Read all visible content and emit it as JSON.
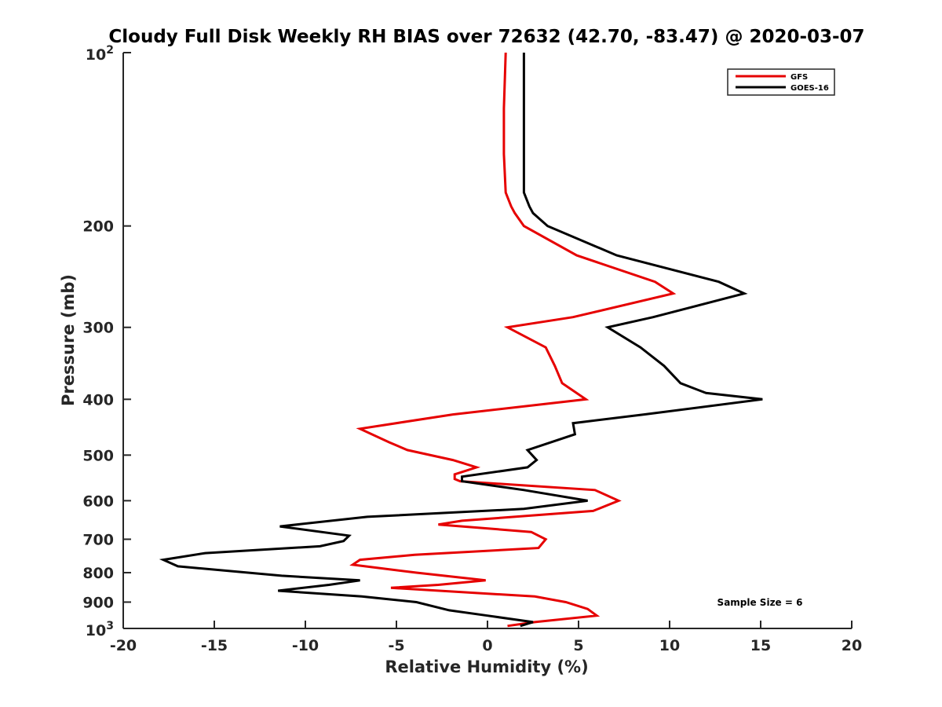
{
  "chart_data": {
    "type": "line",
    "title": "Cloudy Full Disk Weekly RH BIAS over 72632 (42.70, -83.47) @ 2020-03-07",
    "xlabel": "Relative Humidity (%)",
    "ylabel": "Pressure (mb)",
    "xlim": [
      -20,
      20
    ],
    "ylim": [
      100,
      1000
    ],
    "y_scale": "log",
    "y_reversed": true,
    "grid": false,
    "legend_position": "top-right",
    "x_ticks": [
      -20,
      -15,
      -10,
      -5,
      0,
      5,
      10,
      15,
      20
    ],
    "x_tick_labels": [
      "-20",
      "-15",
      "-10",
      "-5",
      "0",
      "5",
      "10",
      "15",
      "20"
    ],
    "y_ticks": [
      200,
      300,
      400,
      500,
      600,
      700,
      800,
      900
    ],
    "y_tick_labels": [
      "200",
      "300",
      "400",
      "500",
      "600",
      "700",
      "800",
      "900"
    ],
    "y_end_labels": {
      "top_base": "10",
      "top_exp": "2",
      "bottom_base": "10",
      "bottom_exp": "3"
    },
    "annotation": "Sample Size = 6",
    "series": [
      {
        "name": "GFS",
        "color": "#e60000",
        "points": [
          [
            1.0,
            100
          ],
          [
            0.9,
            125
          ],
          [
            0.9,
            150
          ],
          [
            1.0,
            175
          ],
          [
            1.3,
            185
          ],
          [
            1.5,
            190
          ],
          [
            2.0,
            200
          ],
          [
            4.9,
            225
          ],
          [
            9.2,
            250
          ],
          [
            10.2,
            262
          ],
          [
            4.7,
            288
          ],
          [
            1.1,
            300
          ],
          [
            3.2,
            325
          ],
          [
            3.7,
            350
          ],
          [
            4.1,
            375
          ],
          [
            5.4,
            400
          ],
          [
            -1.9,
            425
          ],
          [
            -7.0,
            450
          ],
          [
            -5.4,
            475
          ],
          [
            -4.4,
            490
          ],
          [
            -1.9,
            510
          ],
          [
            -0.6,
            525
          ],
          [
            -1.8,
            540
          ],
          [
            -1.8,
            550
          ],
          [
            -1.5,
            555
          ],
          [
            5.9,
            575
          ],
          [
            7.2,
            600
          ],
          [
            5.8,
            625
          ],
          [
            -1.4,
            650
          ],
          [
            -2.7,
            660
          ],
          [
            2.4,
            680
          ],
          [
            3.2,
            700
          ],
          [
            2.8,
            725
          ],
          [
            -4.0,
            745
          ],
          [
            -7.0,
            760
          ],
          [
            -7.4,
            775
          ],
          [
            -3.9,
            800
          ],
          [
            -0.1,
            825
          ],
          [
            -2.7,
            840
          ],
          [
            -5.3,
            850
          ],
          [
            2.6,
            880
          ],
          [
            4.3,
            900
          ],
          [
            5.5,
            925
          ],
          [
            6.0,
            950
          ],
          [
            2.6,
            975
          ],
          [
            1.1,
            990
          ]
        ]
      },
      {
        "name": "GOES-16",
        "color": "#000000",
        "points": [
          [
            2.0,
            100
          ],
          [
            2.0,
            125
          ],
          [
            2.0,
            150
          ],
          [
            2.0,
            175
          ],
          [
            2.3,
            185
          ],
          [
            2.5,
            190
          ],
          [
            3.3,
            200
          ],
          [
            7.1,
            225
          ],
          [
            12.7,
            250
          ],
          [
            14.1,
            262
          ],
          [
            9.1,
            288
          ],
          [
            6.6,
            300
          ],
          [
            8.4,
            325
          ],
          [
            9.7,
            350
          ],
          [
            10.6,
            375
          ],
          [
            12.0,
            390
          ],
          [
            15.1,
            400
          ],
          [
            8.6,
            425
          ],
          [
            4.7,
            440
          ],
          [
            4.8,
            460
          ],
          [
            2.2,
            490
          ],
          [
            2.7,
            510
          ],
          [
            2.2,
            525
          ],
          [
            -1.4,
            545
          ],
          [
            -1.4,
            555
          ],
          [
            2.0,
            575
          ],
          [
            5.5,
            600
          ],
          [
            2.0,
            620
          ],
          [
            -6.6,
            640
          ],
          [
            -11.4,
            665
          ],
          [
            -7.6,
            690
          ],
          [
            -7.9,
            705
          ],
          [
            -9.2,
            720
          ],
          [
            -15.5,
            740
          ],
          [
            -17.8,
            760
          ],
          [
            -17.0,
            780
          ],
          [
            -11.3,
            810
          ],
          [
            -7.0,
            825
          ],
          [
            -8.7,
            840
          ],
          [
            -11.5,
            860
          ],
          [
            -6.9,
            880
          ],
          [
            -3.9,
            900
          ],
          [
            -2.1,
            930
          ],
          [
            0.0,
            950
          ],
          [
            2.5,
            975
          ],
          [
            1.8,
            990
          ]
        ]
      }
    ]
  }
}
